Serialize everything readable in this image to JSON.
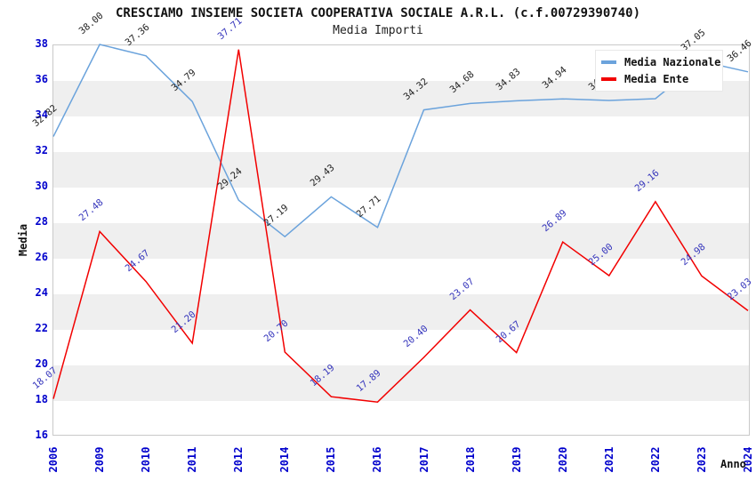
{
  "title": "CRESCIAMO INSIEME SOCIETA COOPERATIVA SOCIALE A.R.L. (c.f.00729390740)",
  "subtitle": "Media Importi",
  "colors": {
    "background": "#FFFFFF",
    "band": "#EFEFEF",
    "frame": "#C9C9C9",
    "axis_tick_text": "#0000CC"
  },
  "chart_data": {
    "type": "line",
    "title": "CRESCIAMO INSIEME SOCIETA COOPERATIVA SOCIALE A.R.L. (c.f.00729390740)",
    "subtitle": "Media Importi",
    "xlabel": "Anno",
    "ylabel": "Media",
    "ylim": [
      16,
      38
    ],
    "ytick_step": 2,
    "grid": "horizontal-alternating-bands",
    "legend_position": "top-right",
    "categories": [
      "2006",
      "2009",
      "2010",
      "2011",
      "2012",
      "2014",
      "2015",
      "2016",
      "2017",
      "2018",
      "2019",
      "2020",
      "2021",
      "2022",
      "2023",
      "2024"
    ],
    "series": [
      {
        "name": "Media Nazionale",
        "color": "#6BA3DC",
        "label_color": "#222222",
        "values": [
          32.82,
          38.0,
          37.36,
          34.79,
          29.24,
          27.19,
          29.43,
          27.71,
          34.32,
          34.68,
          34.83,
          34.94,
          34.85,
          34.95,
          37.05,
          36.46
        ],
        "note_labels_hidden_behind_legend": [
          12,
          13
        ]
      },
      {
        "name": "Media Ente",
        "color": "#F20000",
        "label_color": "#3333BB",
        "values": [
          18.07,
          27.48,
          24.67,
          21.2,
          37.71,
          20.7,
          18.19,
          17.89,
          20.4,
          23.07,
          20.67,
          26.89,
          25.0,
          29.16,
          24.98,
          23.03
        ]
      }
    ]
  }
}
